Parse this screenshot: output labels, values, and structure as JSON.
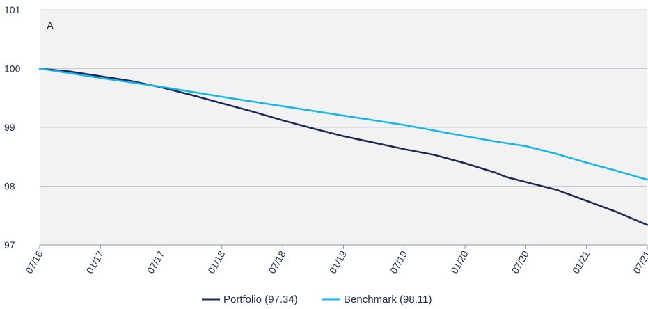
{
  "chart_data": {
    "type": "line",
    "panel_label": "A",
    "x_ticks": [
      "07/16",
      "01/17",
      "07/17",
      "01/18",
      "07/18",
      "01/19",
      "07/19",
      "01/20",
      "07/20",
      "01/21",
      "07/21"
    ],
    "ylim": [
      97,
      101
    ],
    "y_ticks": [
      "97",
      "98",
      "99",
      "100",
      "101"
    ],
    "grid": true,
    "background_color": "#f2f2f2",
    "legend_position": "bottom-center",
    "series": [
      {
        "name": "Portfolio (97.34)",
        "color": "#1a2857",
        "x": [
          "07/16",
          "10/16",
          "01/17",
          "04/17",
          "07/17",
          "10/17",
          "01/18",
          "04/18",
          "07/18",
          "10/18",
          "01/19",
          "04/19",
          "07/19",
          "10/19",
          "01/20",
          "04/20",
          "05/20",
          "07/20",
          "10/20",
          "01/21",
          "04/21",
          "07/21"
        ],
        "values": [
          100.0,
          99.95,
          99.87,
          99.79,
          99.68,
          99.55,
          99.41,
          99.27,
          99.12,
          98.98,
          98.85,
          98.74,
          98.63,
          98.53,
          98.39,
          98.23,
          98.16,
          98.07,
          97.94,
          97.75,
          97.56,
          97.34
        ]
      },
      {
        "name": "Benchmark (98.11)",
        "color": "#13b5ea",
        "x": [
          "07/16",
          "01/17",
          "07/17",
          "01/18",
          "07/18",
          "01/19",
          "07/19",
          "01/20",
          "04/20",
          "07/20",
          "10/20",
          "01/21",
          "04/21",
          "07/21"
        ],
        "values": [
          100.0,
          99.84,
          99.69,
          99.52,
          99.36,
          99.2,
          99.04,
          98.85,
          98.76,
          98.68,
          98.55,
          98.4,
          98.26,
          98.11
        ]
      }
    ]
  }
}
